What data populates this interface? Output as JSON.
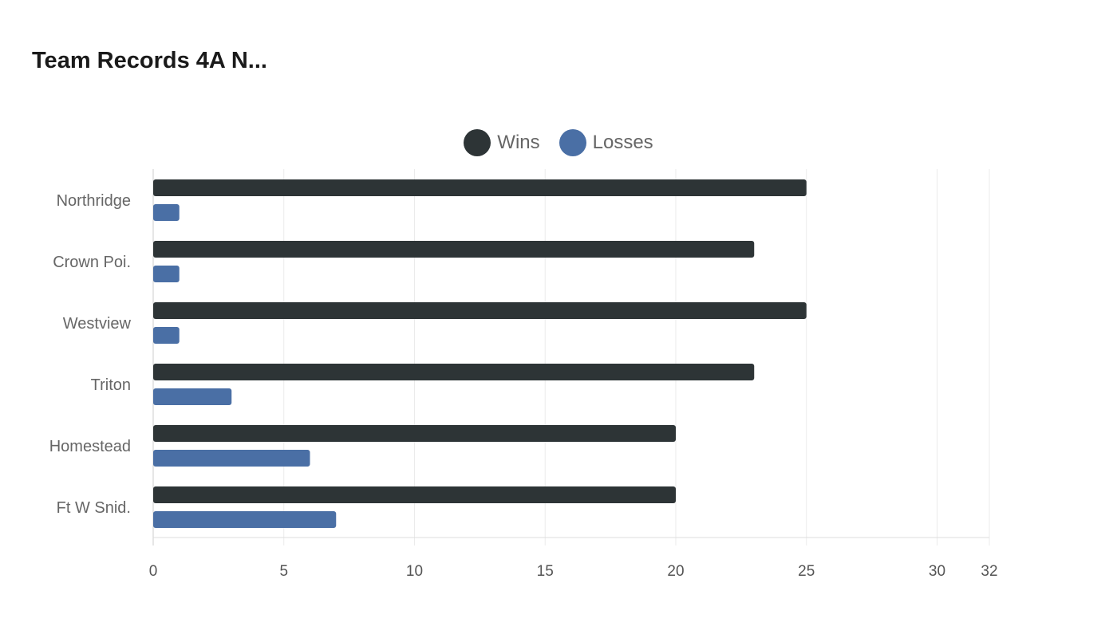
{
  "chart_data": {
    "type": "bar",
    "orientation": "horizontal",
    "title": "Team Records 4A N...",
    "categories": [
      "Northridge",
      "Crown Poi.",
      "Westview",
      "Triton",
      "Homestead",
      "Ft W Snid."
    ],
    "series": [
      {
        "name": "Wins",
        "color": "#2d3436",
        "values": [
          25,
          23,
          25,
          23,
          20,
          20
        ]
      },
      {
        "name": "Losses",
        "color": "#4a6fa5",
        "values": [
          1,
          1,
          1,
          3,
          6,
          7
        ]
      }
    ],
    "xlim": [
      0,
      32
    ],
    "xticks": [
      0,
      5,
      10,
      15,
      20,
      25,
      30,
      32
    ],
    "grid": true,
    "legend": "top-center"
  }
}
